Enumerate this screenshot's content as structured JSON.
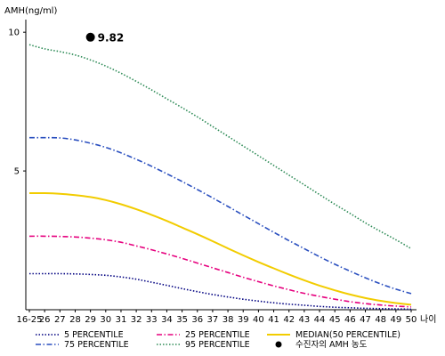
{
  "chart_data": {
    "type": "line",
    "ylabel": "AMH(ng/ml)",
    "xlabel": "나이",
    "ylim": [
      0,
      11
    ],
    "yticks": [
      5,
      10
    ],
    "categories": [
      "16-25",
      "26",
      "27",
      "28",
      "29",
      "30",
      "31",
      "32",
      "33",
      "34",
      "35",
      "36",
      "37",
      "38",
      "39",
      "40",
      "41",
      "42",
      "43",
      "44",
      "45",
      "46",
      "47",
      "48",
      "49",
      "50"
    ],
    "grid": false,
    "legend_position": "bottom",
    "series": [
      {
        "name": "5 PERCENTILE",
        "color": "#000080",
        "style": "dotted",
        "values": [
          1.3,
          1.3,
          1.3,
          1.29,
          1.27,
          1.24,
          1.18,
          1.1,
          0.99,
          0.88,
          0.76,
          0.65,
          0.55,
          0.46,
          0.38,
          0.31,
          0.25,
          0.2,
          0.16,
          0.12,
          0.09,
          0.07,
          0.05,
          0.04,
          0.03,
          0.02
        ]
      },
      {
        "name": "25 PERCENTILE",
        "color": "#e6007e",
        "style": "dashdot",
        "values": [
          2.65,
          2.65,
          2.64,
          2.62,
          2.58,
          2.52,
          2.43,
          2.3,
          2.16,
          2.01,
          1.85,
          1.68,
          1.51,
          1.34,
          1.17,
          1.01,
          0.86,
          0.72,
          0.59,
          0.48,
          0.38,
          0.29,
          0.22,
          0.17,
          0.13,
          0.1
        ]
      },
      {
        "name": "MEDIAN(50 PERCENTILE)",
        "color": "#f2cc00",
        "style": "solid",
        "values": [
          4.2,
          4.2,
          4.18,
          4.13,
          4.06,
          3.95,
          3.8,
          3.62,
          3.42,
          3.2,
          2.96,
          2.72,
          2.47,
          2.21,
          1.96,
          1.72,
          1.49,
          1.27,
          1.06,
          0.87,
          0.7,
          0.55,
          0.42,
          0.32,
          0.24,
          0.18
        ]
      },
      {
        "name": "75 PERCENTILE",
        "color": "#2a4fbf",
        "style": "dashdot",
        "values": [
          6.2,
          6.2,
          6.19,
          6.12,
          6.0,
          5.85,
          5.65,
          5.42,
          5.17,
          4.9,
          4.62,
          4.33,
          4.03,
          3.72,
          3.41,
          3.1,
          2.79,
          2.49,
          2.2,
          1.91,
          1.64,
          1.39,
          1.15,
          0.93,
          0.74,
          0.58
        ]
      },
      {
        "name": "95 PERCENTILE",
        "color": "#2e8b57",
        "style": "dotted",
        "values": [
          9.55,
          9.4,
          9.3,
          9.18,
          9.0,
          8.78,
          8.52,
          8.23,
          7.92,
          7.6,
          7.28,
          6.95,
          6.6,
          6.25,
          5.9,
          5.55,
          5.2,
          4.85,
          4.5,
          4.15,
          3.8,
          3.47,
          3.13,
          2.82,
          2.52,
          2.2
        ]
      }
    ],
    "patient": {
      "name": "수진자의 AMH 농도",
      "x": "29",
      "value": 9.82,
      "label": "9.82"
    }
  }
}
